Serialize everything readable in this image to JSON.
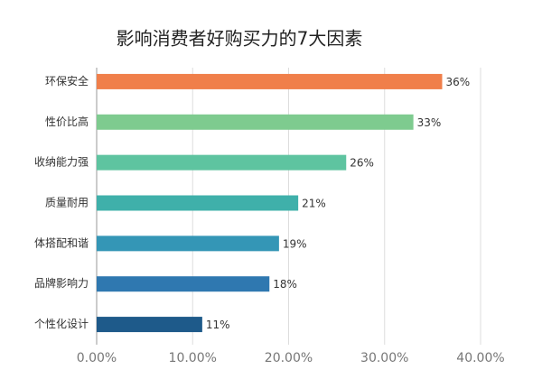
{
  "chart_data": {
    "type": "bar",
    "orientation": "horizontal",
    "title": "影响消费者好购买力的7大因素",
    "categories": [
      "环保安全",
      "性价比高",
      "收纳能力强",
      "质量耐用",
      "体搭配和谐",
      "品牌影响力",
      "个性化设计"
    ],
    "values": [
      36,
      33,
      26,
      21,
      19,
      18,
      11
    ],
    "value_labels": [
      "36%",
      "33%",
      "26%",
      "21%",
      "19%",
      "18%",
      "11%"
    ],
    "colors": [
      "#f07f4a",
      "#7ecb8f",
      "#5ec4a0",
      "#3fb0aa",
      "#3496b6",
      "#2f78b0",
      "#1e5a8a"
    ],
    "xlim": [
      0,
      40
    ],
    "xticks": [
      {
        "value": 0,
        "label": "0.00%"
      },
      {
        "value": 10,
        "label": "10.00%"
      },
      {
        "value": 20,
        "label": "20.00%"
      },
      {
        "value": 30,
        "label": "30.00%"
      },
      {
        "value": 40,
        "label": "40.00%"
      }
    ],
    "grid": true
  }
}
